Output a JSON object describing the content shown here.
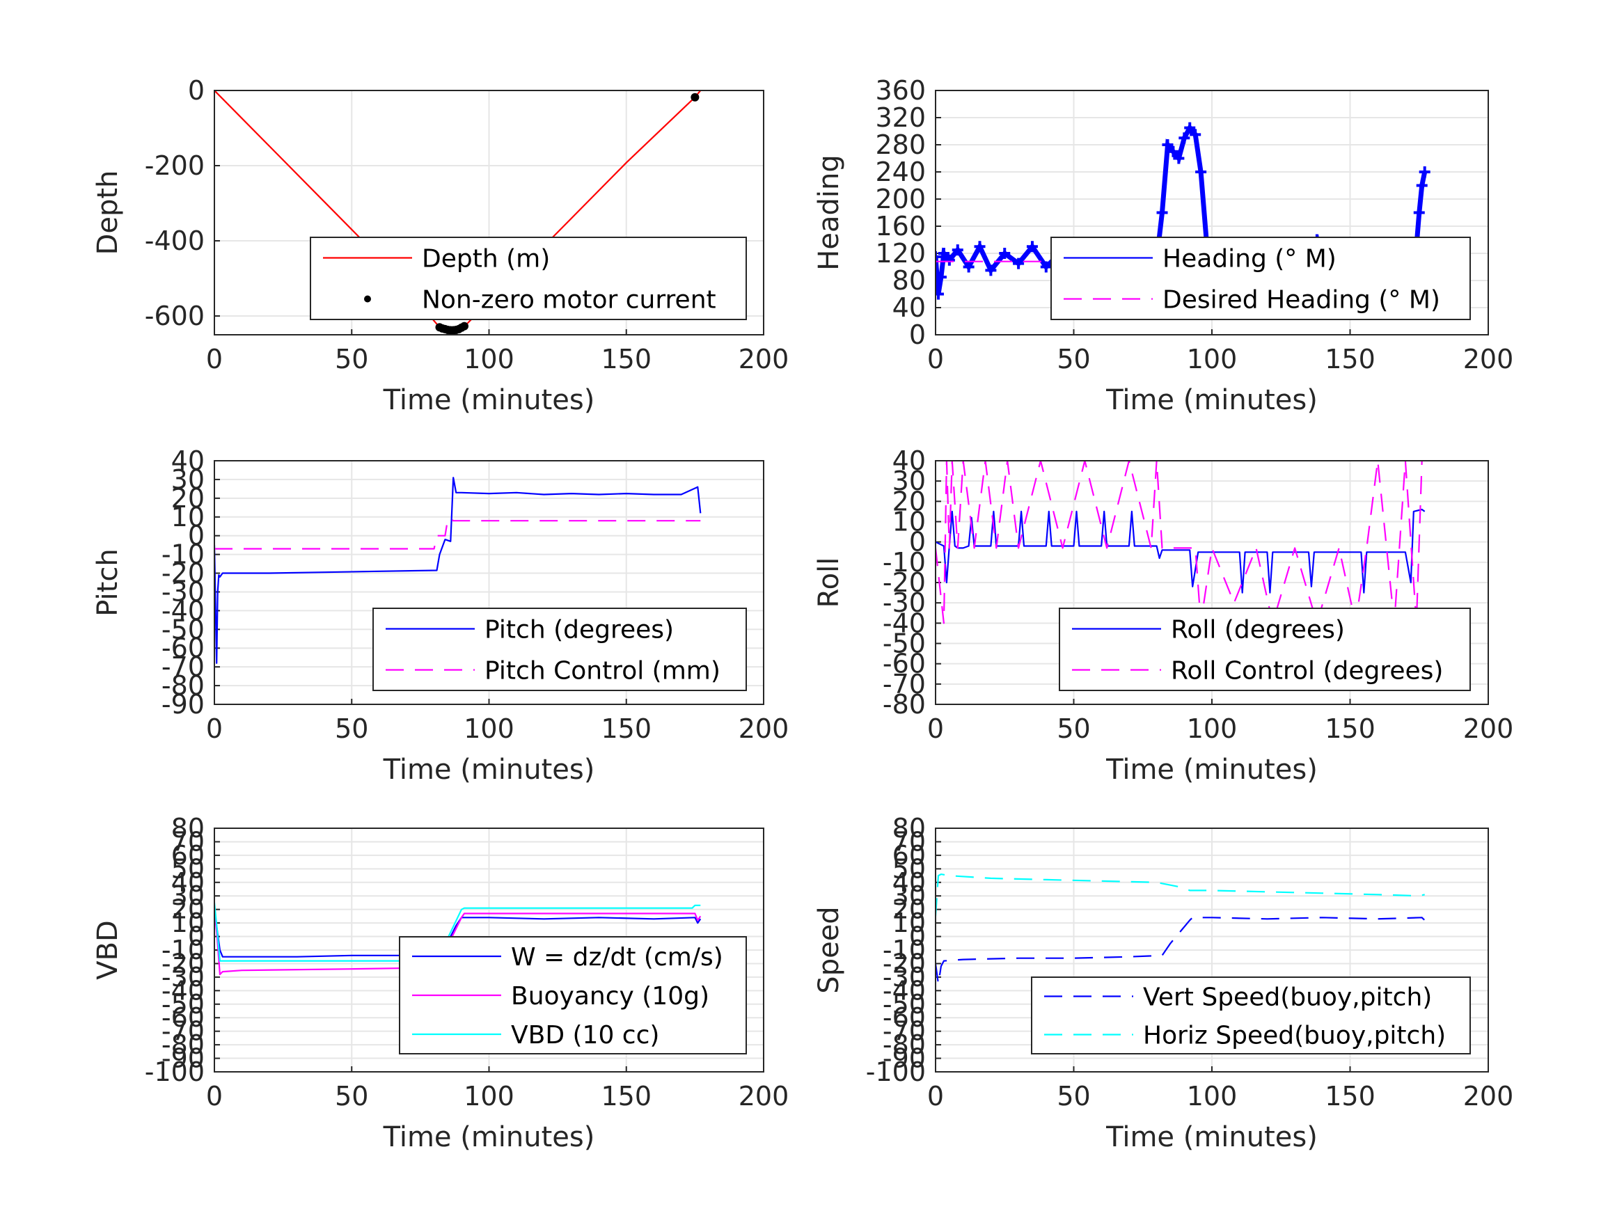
{
  "chart_data": [
    {
      "type": "line",
      "xlabel": "Time (minutes)",
      "ylabel": "Depth",
      "xlim": [
        0,
        200
      ],
      "ylim": [
        -650,
        0
      ],
      "xticks": [
        "0",
        "50",
        "100",
        "150",
        "200"
      ],
      "yticks": [
        "0",
        "-200",
        "-400",
        "-600"
      ],
      "grid": true,
      "legend_position": "bottom-right",
      "series": [
        {
          "name": "Depth (m)",
          "color": "#ff0000",
          "style": "solid",
          "x": [
            0,
            20,
            40,
            60,
            82,
            85,
            88,
            91,
            110,
            130,
            150,
            175,
            177
          ],
          "y": [
            0,
            -148,
            -296,
            -444,
            -630,
            -637,
            -636,
            -628,
            -488,
            -340,
            -192,
            -18,
            0
          ]
        },
        {
          "name": "Non-zero motor current",
          "color": "#000000",
          "style": "dots",
          "x": [
            82,
            83,
            84,
            85,
            86,
            87,
            88,
            89,
            90,
            91,
            175
          ],
          "y": [
            -630,
            -633,
            -635,
            -637,
            -638,
            -638,
            -637,
            -635,
            -631,
            -627,
            -18
          ]
        }
      ]
    },
    {
      "type": "line",
      "xlabel": "Time (minutes)",
      "ylabel": "Heading",
      "xlim": [
        0,
        200
      ],
      "ylim": [
        0,
        360
      ],
      "xticks": [
        "0",
        "50",
        "100",
        "150",
        "200"
      ],
      "yticks": [
        "0",
        "40",
        "80",
        "120",
        "160",
        "200",
        "240",
        "280",
        "320",
        "360"
      ],
      "grid": true,
      "legend_position": "bottom-right",
      "series": [
        {
          "name": "Heading (° M)",
          "color": "#0000ff",
          "style": "plus",
          "x": [
            0,
            1,
            2,
            3,
            5,
            8,
            12,
            16,
            20,
            25,
            30,
            35,
            40,
            45,
            50,
            55,
            60,
            65,
            70,
            75,
            80,
            82,
            84,
            86,
            88,
            90,
            92,
            94,
            96,
            98,
            100,
            105,
            110,
            115,
            120,
            125,
            130,
            135,
            138,
            140,
            145,
            150,
            155,
            160,
            165,
            168,
            170,
            172,
            174,
            175,
            176,
            177
          ],
          "y": [
            115,
            60,
            85,
            120,
            110,
            125,
            100,
            130,
            95,
            120,
            105,
            130,
            100,
            120,
            95,
            125,
            105,
            115,
            100,
            125,
            110,
            180,
            280,
            270,
            260,
            290,
            305,
            295,
            240,
            140,
            90,
            110,
            95,
            120,
            100,
            115,
            105,
            125,
            140,
            95,
            110,
            100,
            130,
            90,
            110,
            85,
            115,
            100,
            130,
            180,
            220,
            240
          ]
        },
        {
          "name": "Desired Heading (° M)",
          "color": "#ff00ff",
          "style": "dashed",
          "x": [
            0,
            177
          ],
          "y": [
            108,
            108
          ]
        }
      ]
    },
    {
      "type": "line",
      "xlabel": "Time (minutes)",
      "ylabel": "Pitch",
      "xlim": [
        0,
        200
      ],
      "ylim": [
        -90,
        40
      ],
      "xticks": [
        "0",
        "50",
        "100",
        "150",
        "200"
      ],
      "yticks": [
        "40",
        "30",
        "20",
        "10",
        "0",
        "-10",
        "-20",
        "-30",
        "-40",
        "-50",
        "-60",
        "-70",
        "-80",
        "-90"
      ],
      "grid": true,
      "legend_position": "bottom-right",
      "series": [
        {
          "name": "Pitch (degrees)",
          "color": "#0000ff",
          "style": "solid",
          "x": [
            0,
            0.8,
            1.2,
            1.6,
            2,
            3,
            10,
            20,
            40,
            60,
            81,
            82,
            84,
            86,
            87,
            88,
            90,
            100,
            110,
            120,
            130,
            140,
            150,
            160,
            170,
            176,
            177
          ],
          "y": [
            -5,
            -68,
            -30,
            -21,
            -22,
            -20,
            -20,
            -20,
            -19.5,
            -19,
            -18.5,
            -10,
            -2,
            -3,
            31,
            23,
            23,
            22.5,
            23,
            22,
            22.5,
            22,
            22.5,
            22,
            22,
            26,
            12
          ]
        },
        {
          "name": "Pitch Control (mm)",
          "color": "#ff00ff",
          "style": "dashed",
          "x": [
            0,
            80,
            81,
            84,
            85,
            86,
            87,
            177
          ],
          "y": [
            -7,
            -7,
            0,
            0,
            9,
            9,
            8,
            8
          ]
        }
      ]
    },
    {
      "type": "line",
      "xlabel": "Time (minutes)",
      "ylabel": "Roll",
      "xlim": [
        0,
        200
      ],
      "ylim": [
        -80,
        40
      ],
      "xticks": [
        "0",
        "50",
        "100",
        "150",
        "200"
      ],
      "yticks": [
        "40",
        "30",
        "20",
        "10",
        "0",
        "-10",
        "-20",
        "-30",
        "-40",
        "-50",
        "-60",
        "-70",
        "-80"
      ],
      "grid": true,
      "legend_position": "bottom-right",
      "series": [
        {
          "name": "Roll (degrees)",
          "color": "#0000ff",
          "style": "solid",
          "x": [
            0,
            3,
            4,
            5,
            6,
            7,
            8,
            10,
            12,
            13,
            14,
            16,
            20,
            21,
            22,
            30,
            31,
            32,
            40,
            41,
            42,
            50,
            51,
            52,
            60,
            61,
            62,
            70,
            71,
            72,
            80,
            81,
            82,
            90,
            92,
            93,
            95,
            100,
            110,
            111,
            112,
            120,
            121,
            122,
            130,
            135,
            136,
            137,
            140,
            145,
            150,
            154,
            155,
            156,
            160,
            165,
            170,
            172,
            173,
            176,
            177
          ],
          "y": [
            0,
            -2,
            -20,
            -2,
            15,
            -2,
            -3,
            -3,
            -2,
            12,
            -2,
            -2,
            -2,
            15,
            -2,
            -2,
            15,
            -2,
            -2,
            15,
            -2,
            -2,
            15,
            -2,
            -2,
            15,
            -2,
            -2,
            15,
            -2,
            -2,
            -8,
            -4,
            -4,
            -4,
            -22,
            -5,
            -5,
            -5,
            -25,
            -5,
            -5,
            -25,
            -5,
            -5,
            -5,
            -22,
            -5,
            -5,
            -5,
            -5,
            -5,
            -25,
            -5,
            -5,
            -5,
            -5,
            -20,
            15,
            16,
            15
          ]
        },
        {
          "name": "Roll Control (degrees)",
          "color": "#ff00ff",
          "style": "dashed",
          "x": [
            0,
            3,
            4,
            5,
            6,
            8,
            10,
            14,
            18,
            22,
            26,
            30,
            38,
            46,
            54,
            62,
            70,
            78,
            80,
            82,
            90,
            94,
            96,
            100,
            108,
            116,
            122,
            130,
            138,
            146,
            152,
            156,
            160,
            166,
            170,
            174,
            176
          ],
          "y": [
            -3,
            -40,
            40,
            -3,
            40,
            -3,
            40,
            -3,
            40,
            -3,
            40,
            -3,
            40,
            -3,
            40,
            -3,
            40,
            -3,
            40,
            -3,
            -3,
            -3,
            -40,
            -3,
            -30,
            -3,
            -40,
            -3,
            -40,
            -3,
            -40,
            -3,
            40,
            -40,
            40,
            -40,
            40
          ]
        }
      ]
    },
    {
      "type": "line",
      "xlabel": "Time (minutes)",
      "ylabel": "VBD",
      "xlim": [
        0,
        200
      ],
      "ylim": [
        -100,
        80
      ],
      "xticks": [
        "0",
        "50",
        "100",
        "150",
        "200"
      ],
      "yticks": [
        "80",
        "70",
        "60",
        "50",
        "40",
        "30",
        "20",
        "10",
        "0",
        "-10",
        "-20",
        "-30",
        "-40",
        "-50",
        "-60",
        "-70",
        "-80",
        "-90",
        "-100"
      ],
      "grid": true,
      "legend_position": "bottom-right",
      "series": [
        {
          "name": "W = dz/dt (cm/s)",
          "color": "#0000ff",
          "style": "solid",
          "x": [
            0,
            1,
            2,
            3,
            10,
            30,
            50,
            70,
            81,
            82,
            84,
            86,
            88,
            90,
            92,
            100,
            120,
            140,
            160,
            175,
            176,
            177
          ],
          "y": [
            20,
            5,
            -10,
            -15,
            -15,
            -15,
            -14,
            -14,
            -13,
            -20,
            -10,
            0,
            8,
            14,
            14,
            14,
            13,
            14,
            13,
            14,
            10,
            13
          ]
        },
        {
          "name": "Buoyancy (10g)",
          "color": "#ff00ff",
          "style": "solid",
          "x": [
            0,
            1,
            2,
            3,
            10,
            50,
            81,
            90,
            91,
            120,
            150,
            175,
            176,
            177
          ],
          "y": [
            20,
            0,
            -28,
            -26,
            -25,
            -24,
            -23,
            14,
            17,
            17,
            17,
            17,
            12,
            15
          ]
        },
        {
          "name": "VBD (10 cc)",
          "color": "#00ffff",
          "style": "solid",
          "x": [
            0,
            1,
            2,
            3,
            10,
            50,
            81,
            90,
            91,
            120,
            150,
            174,
            175,
            177
          ],
          "y": [
            25,
            5,
            -18,
            -18,
            -18,
            -18,
            -18,
            20,
            21,
            21,
            21,
            21,
            23,
            23
          ]
        }
      ]
    },
    {
      "type": "line",
      "xlabel": "Time (minutes)",
      "ylabel": "Speed",
      "xlim": [
        0,
        200
      ],
      "ylim": [
        -100,
        80
      ],
      "xticks": [
        "0",
        "50",
        "100",
        "150",
        "200"
      ],
      "yticks": [
        "80",
        "70",
        "60",
        "50",
        "40",
        "30",
        "20",
        "10",
        "0",
        "-10",
        "-20",
        "-30",
        "-40",
        "-50",
        "-60",
        "-70",
        "-80",
        "-90",
        "-100"
      ],
      "grid": true,
      "legend_position": "bottom-right",
      "series": [
        {
          "name": "Vert Speed(buoy,pitch)",
          "color": "#0000ff",
          "style": "dashed",
          "x": [
            0,
            1,
            2,
            3,
            10,
            30,
            50,
            70,
            82,
            85,
            92,
            93,
            100,
            120,
            140,
            160,
            176,
            177
          ],
          "y": [
            -20,
            -35,
            -22,
            -18,
            -17,
            -16,
            -16,
            -15,
            -14,
            -5,
            12,
            14,
            14,
            13,
            14,
            13,
            14,
            12
          ]
        },
        {
          "name": "Horiz Speed(buoy,pitch)",
          "color": "#00ffff",
          "style": "dashed",
          "x": [
            0,
            1,
            2,
            5,
            20,
            40,
            60,
            80,
            90,
            92,
            100,
            120,
            140,
            160,
            175,
            177
          ],
          "y": [
            15,
            45,
            46,
            45,
            43,
            42,
            41,
            40,
            36,
            34,
            34,
            33,
            32,
            31,
            30,
            31
          ]
        }
      ]
    }
  ]
}
